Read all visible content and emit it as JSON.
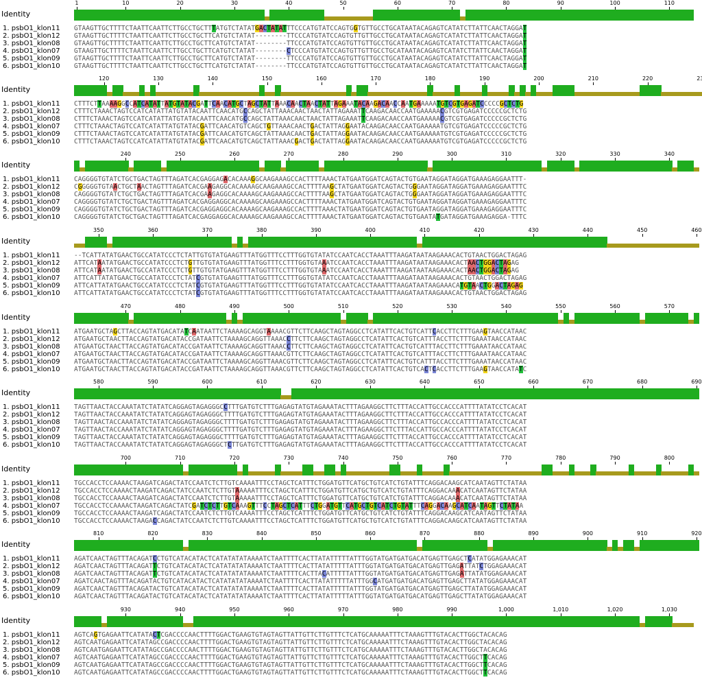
{
  "identity_label": "Identity",
  "sequence_names": [
    "1. psbO1_klon11",
    "2. psbO1_klon12",
    "3. psbO1_klon08",
    "4. psbO1_klon07",
    "5. psbO1_klon09",
    "6. psbO1_klon10"
  ],
  "colors": {
    "identity_full": "#1fad1f",
    "identity_partial": "#a79a1d",
    "A": "#e0686b",
    "G": "#f3d61a",
    "C": "#7b86d8",
    "T": "#21bf3a"
  },
  "blocks": [
    {
      "start": 1,
      "end": 114,
      "ticks": [
        "1",
        "10",
        "20",
        "30",
        "40",
        "50",
        "60",
        "70",
        "80",
        "90",
        "100",
        "110"
      ],
      "rows": [
        "GTAAGTTGCTTTTCTAATTCAATTCTTGCCTGCTTTATGTCTATATGACTATATTTCCCATGTATCCAGTGGTGTTGCCTGCATAATACAGAGTCATATCTTATTCAACTAGGAT",
        "GTAAGTTGCTTTTCTAATTCAATTCTTGCCTGCTTCATGTCTATAT--------TTCCCATGTATCCAGTGTTGTTGCCTGCATAATACAGAGTCATATCTTATTCAACTAGGAT",
        "GTAAGTTGCTTTTCTAATTCAATTCTTGCCTGCTTCATGTCTATAT--------TTCCCATGTATCCAGTGTTGTTGCCTGCATAATACAGAGTCATATCTTATTCAACTAGGAT",
        "GTAAGTTGCTTTTCTAATTCAATTCTTGCCTGCTTCATGTCTATAT--------CTCCCATGTATCCAGTGTTGTTGCCTGCATAATACAGAGTCATATCTTATTCAACTAGGAT",
        "GTAAGTTGCTTTTCTAATTCAATTCTTGCCTGCTTCATGTCTATAT--------TTCCCATGTATCCAGTGTTGTTGCCTGCATAATACAGAGTCATATCTTATTCAACTAGGAT",
        "GTAAGTTGCTTTTCTAATTCAATTCTTGCCTGCTTCATGTCTATAT--------TTCCCATGTATCCAGTGTTGTTGCCTGCATAATACAGAGTCATATCTTATTCAACTAGGAT"
      ]
    },
    {
      "start": 115,
      "end": 230,
      "ticks": [
        "120",
        "130",
        "140",
        "150",
        "160",
        "170",
        "180",
        "190",
        "200",
        "210",
        "220",
        "230"
      ],
      "rows": [
        "CTTTCTTAAAAGGCCATCATATTATGTATACGATTCAACATGCTAGCTATTAAACAACTAACTATTAGAAATACAAGACAACCAATGAAAAATGTCGTGAGATCCCCCGCTCTG",
        "CTTTCTAAACTAGTCCATCATATTATGTATACAATTCAACATGCCAGCTATTAAACAACTAACTATTAGAAATTCAAGACAACCAATGAAAAACGTCGTGAGATCCCCCGCTCTG",
        "CTTTCTAAACTAGTCCATCATATTATGTATACAATTCAACATGCCAGCTATTAAACAACTAACTATTAGAAATTCAAGACAACCAATGAAAAACGTCGTGAGATCCCCCGCTCTG",
        "CTTTCTAAACTAGTCCATCATATTATGTATACGATTCAACATGTCAGCTGTTAAACAACTGACTATTAGGAATACAAGACAACCAATGAAAAATGTCGTGAGATCCCCCGCTCTG",
        "CTTTCTAAACTAGTCCATCATATTATGTATACGATTCAACATGTCAGCTATTAAACAACTGACTATTAGGAATACAAGACAACCAATGAAAAATGTCGTGAGATCCCCCGCTCTG",
        "CTTTCTAAACTAGTCCATCATATTATGTATACGATTCAACATGTCAGCTATTAAACGACTGACTATTAGGAATACAAGACAACCAATGAAAAATGTCGTGAGATCCCCCGCTCTG"
      ]
    },
    {
      "start": 231,
      "end": 345,
      "ticks": [
        "240",
        "250",
        "260",
        "270",
        "280",
        "290",
        "300",
        "310",
        "320",
        "330",
        "340"
      ],
      "rows": [
        "CAGGGGTGTATCTGCTGACTAGTTTAGATCACGAGGAGACACAAAGGCAAGAAAGCCACTTTTAAACTATGAATGGATCAGTACTGTGAATAGGATAGGATGAAAGAGGAATTT-",
        "CGGGGGTGTAACTGCTAACTAGTTTAGATCACGAAGAGGCACAAAAGCAAGAAAGCCACTTTTAAGCTATGAATGGATCAGTACTGGGAATAGGATAGGATGAAAGAGGAATTTC",
        "CAGGGGTGTATCTGCTGACTAGTTTAGATCACGAAGAGGCACAAAAGCAAGAAAGCCACTTTTAAGCTATGAATGGATCAGTACTGGGAATAGGATAGGATGAAAGAGGAATTTC",
        "CAGGGGTGTATCTGCTGACTAGTTTAGATCACGAGGAGGCACAAAAGCAAGAAAGCCACTTTTAAACTATGAATGGATCAGTACTGTGAATAGGATAGGATGAAAGAGGAATTTC",
        "CAGGGGTGTATCTGCTGACTAGTTTAGATCACGAGGAGGCACAAAAGCAAGAAAGCCACTTTTAAACTATGAATGGATCAGTACTGTGAATAGGATAGGATGAAAGAGGAATTTC",
        "CAGGGGTGTATCTGCTGACTAGTTTAGATCACGAGGAGGCACAAAAGCAAGAAAGCCACTTTTAAACTATGAATGGATCAGTACTGTGAATATGATAGGATGAAAGAGGA-TTTC"
      ]
    },
    {
      "start": 346,
      "end": 460,
      "ticks": [
        "350",
        "360",
        "370",
        "380",
        "390",
        "400",
        "410",
        "420",
        "430",
        "440",
        "450",
        "460"
      ],
      "rows": [
        "--TCATTATATGAACTGCCATATCCCTCTATTGTGTATGAAGTTTATGGTTTCCTTTGGTGTATATCCAATCACCTAAATTTAAGATAATAAGAAACACTGTAACTGGACTAGAG",
        "ATTCATAATATGAACTGCCATATCCCTCTGTTGTGTATGAAGTTTATGGTTTCCTTTGGTGTAAATCCAATCACCTAAATTTAAGATAATAAGAAACACTAACTGGACTAGAG",
        "ATTCATAATATGAACTGCCATATCCCTCTGTTGTGTATGAAGTTTATGGTTTCCTTTGGTGTAAATCCAATCACCTAAATTTAAGATAATAAGAAACACTAACTGGACTAGAG",
        "ATTCATTATATGAACTGCCATATCCCTCTATCGTGTATGAAGTTTATGGTTTCCTTTGGTGTATATCCAATCACCTAAATTTAAGATAATAAGAAACACTGTAACTGGACTAGAG",
        "ATTCATTATATGAACTGCCATATCCCTCTATCGTGTATGAAGTTTATGGTTTCCTTTGGTGTATATCCAATCACCTAAATTTAAGATAATAAGAAACATGTAACTGGACTAGAG",
        "ATTCATTATATGAACTGCCATATCCCTCTATCGTGTATGAAGTTTATGGTTTCCTTTGGTGTATATCCAATCACCTAAATTTAAGATAATAAGAAACACTGTAACTGGACTAGAG"
      ]
    },
    {
      "start": 461,
      "end": 575,
      "ticks": [
        "470",
        "480",
        "490",
        "500",
        "510",
        "520",
        "530",
        "540",
        "550",
        "560",
        "570"
      ],
      "rows": [
        "ATGAATGCTAGCTTACCAGTATGACATATCAATAATTCTAAAAGCAGGTAAAACGTTCTTCAAGCTAGTAGGCCTCATATTCACTGTCATTCACCTTCTTTGAAGTAACCATAAC",
        "ATGAATGCTAACTTACCAGTATGACATACCGATAATTCTAAAAGCAGGTTAAACCTTCTTCAAGCTAGTAGGCCTCATATTCACTGTCATTTACCTTCTTTGAAATAACCATAAC",
        "ATGAATGCTAACTTACCAGTATGACATACCGATAATTCTAAAAGCAGGTTAAACCTTCTTCAAGCTAGTAGGCCTCATATTCACTGTCATTTACCTTCTTTGAAATAACCATAAC",
        "ATGAATGCTAACTTACCAGTATGACATACCGATAATTCTAAAAGCAGGTTAAACGTTCTTCAAGCTAGTAGGCCTCATATTCACTGTCATTTACCTTCTTTGAAATAACCATAAC",
        "ATGAATGCTAACTTACCAGTATGACATACCGATAATTCTAAAAGCAGGTTAAACGTTCTTCAAGCTAGTAGGCCTCATATTCACTGTCATTTACCTTCTTTGAAATAACCATAAC",
        "ATGAATGCTAACTTACCAGTATGACATACCGATAATTCTAAAAGCAGGTTAAACGTTCTTCAAGCTAGTAGGCCTCATATTCACTGTCACTCACCTTCTTTGAAGTAACCATATC"
      ]
    },
    {
      "start": 576,
      "end": 690,
      "ticks": [
        "580",
        "590",
        "600",
        "610",
        "620",
        "630",
        "640",
        "650",
        "660",
        "670",
        "680",
        "690"
      ],
      "rows": [
        "TAGTTAACTACCAAATATCTATATCAGGAGTAGAGGGCCTTTGATGTCTTTGAGAGTATGTAGAAATACTTTAGAAGGCTTCTTTACCATTGCCACCCATTTTATATCCTCACAT",
        "TAGTTAACTACCAAATATCTATATCAGGAGTAGAGGGCTTTTGATGTCTTTGAGAGTATGTAGAAATACTTTAGAAGGCTTCTTTACCATTGCCACCCATTTTATATCCTCACAT",
        "TAGTTAACTACCAAATATCTATATCAGGAGTAGAGGGCTTTTGATGTCTTTGAGAGTATGTAGAAATACTTTAGAAGGCTTCTTTACCATTGCCACCCATTTTATATCCTCACAT",
        "TAGTTAACTACCAAATATCTATATCAGGAGTAGAGGGCTTTTGATGTCTTTGAGAGTATGTAGAAATACTTTAGAAGGCTTCTTTACCATTGCCACCCATTTTATATCCTCACAT",
        "TAGTTAACTACCAAATATCTATATCAGGAGTAGAGGGCTTTTGATGTCTTTGAGAGTATGTAGAAATACTTTAGAAGGCTTCTTTACCATTGCCACCCATTTTATATCCTCACAT",
        "TAGTTAACTACCAAATATCTATATCAGGAGTAGAGGGCTCTTGATGTCTTTGAGAGTATGTAGAAATACTTTAGAAGGCTTCTTTACCATTGCCACCCATTTTATATCCTCACAT"
      ]
    },
    {
      "start": 691,
      "end": 805,
      "ticks": [
        "700",
        "710",
        "720",
        "730",
        "740",
        "750",
        "760",
        "770",
        "780",
        "790",
        "800"
      ],
      "rows": [
        "TGCCACCTCCAAAACTAAGATCAGACTATCCAATCTCTTGTCAAAATTTCCTAGCTCATTTCTGGATGTTCATGCTGTCATCTGTATTTCAGGACAAGCATCAATAGTTCTATAA",
        "TGCCACCTCCAAAACTAAGATCAGACTATCCAATCTCTTGTAAAAATTTCCTAGCTCATTTCTGGATGTTCATGCTGTCATCTGTATTTCAGGACAAACATCAATAGTTCTATAA",
        "TGCCACCTCCAAAACTAAGATCAGACTATCCAATCTCTTGTAAAAATTTCCTAGCTCATTTCTGGATGTTCATGCTGTCATCTGTATTTCAGGACAAACATCAATAGTTCTATAA",
        "TGCCACCTCCAAAACTAAGATCAGACTATCGATCTCTTGTCAAAGTTTCCTAGCTCATTTCTGGATGTTCATGCTGTCATCTGTATTTCAGGACAAGCATCAATAGTTCTATAA",
        "TGCCACCTCCAAAACTAAGATCAGACTATCCAATCTCTTGTCAAAATTTCCTAGCTCATTTCTGGATGTTCATGCTGTCATCTGTATTTCAGGACAAGCATCAATAGTTCTATAA",
        "TGCCACCTCCAAAACTAAGACCAGACTATCCAATCTCTTGTCAAAATTTCCTAGCTCATTTCTGGATGTTCATGCTGTCATCTGTATTTCAGGACAAGCATCAATAGTTCTATAA"
      ]
    },
    {
      "start": 806,
      "end": 920,
      "ticks": [
        "810",
        "820",
        "830",
        "840",
        "850",
        "860",
        "870",
        "880",
        "890",
        "900",
        "910",
        "920"
      ],
      "rows": [
        "AGATCAACTAGTTTACAGATCCTGTCATACATACTCATATATATAAAATCTAATTTTCACTTATATTTTTATTTGGTATGATGATGACATGAGTTGAGCTCATATGGAGAAACAT",
        "AGATCAACTAGTTTACAGATTCTGTCATACATACTCATATATATAAAATCTAATTTTCACTTATATTTTTATTTGGTATGATGATGACATGAGTTGAGATTATCTGGAGAAACAT",
        "AGATCAACTAGTTTACAGATTCTGTCATACATACTCATATATATAAAATCTAATTTTCACTTACATTTTTATTTGGTATGATGATGACATGAGTTGAGATTATATGGAGAAACAT",
        "AGATCAACTAGTTTACAGATACTGTCATACATACTCATATATATAAAATCTAATTTTCACTTATATTTTTATTTGGCATGATGATGACATGAGTTGAGCTTATATGGAGAAACAT",
        "AGATCAACTAGTTTACAGATACTGTCATACATACTCATATATATAAAATCTAATTTTCACTTATATTTTTATTTGGTATGATGATGACATGAGTTGAGCTTATATGGAGAAACAT",
        "AGATCAACTAGTTTACAGATACTGTCATACATACTCATATATATAAAATCTAATTTTCACTTATATTTTTATTTGGTATGATGATGACATGAGTTGAGCTTATATGGAGAAACAT"
      ]
    },
    {
      "start": 921,
      "end": 1034,
      "ticks": [
        "930",
        "940",
        "950",
        "960",
        "970",
        "980",
        "990",
        "1,000",
        "1,010",
        "1,020",
        "1,030"
      ],
      "rows": [
        "AGTCAGTGAGAATTCATATACTCGACCCCAACTTTTGGACTGAAGTGTAGTAGTTATTGTTCTTGTTTCTCATGCAAAAATTTCTAAAGTTTGTACACTTGGCTACACAG",
        "AGTCAATGAGAATTCATATAGCCGACCCCAACTTTTGGACTGAAGTGTAGTAGTTATTGTTCTTGTTTCTCATGCAAAAATTTCTAAAGTTTGTACACTTGGCTACACAG",
        "AGTCAATGAGAATTCATATAGCCGACCCCAACTTTTGGACTGAAGTGTAGTAGTTATTGTTCTTGTTTCTCATGCAAAAATTTCTAAAGTTTGTACACTTGGCTACACAG",
        "AGTCAATGAGAATTCATATAGCCGACCCCAACTTTTGGACTGAAGTGTAGTAGTTATTGTTCTTGTTTCTCATGCAAAAATTTCTAAAGTTTGTACACTTGGCTTCACAG",
        "AGTCAATGAGAATTCATATAGCCGACCCCAACTTTTGGACTGAAGTGTAGTAGTTATTGTTCTTGTTTCTCATGCAAAAATTTCTAAAGTTTGTACACTTGGCTTCACAG",
        "AGTCAATGAGAATTCATATAGCCGACCCCAACTTTTGGACTGAAGTGTAGTAGTTATTGTTCTTGTTTCTCATGCAAAAATTTCTAAAGTTTGTACACTTGGCTTCACAG"
      ]
    }
  ]
}
